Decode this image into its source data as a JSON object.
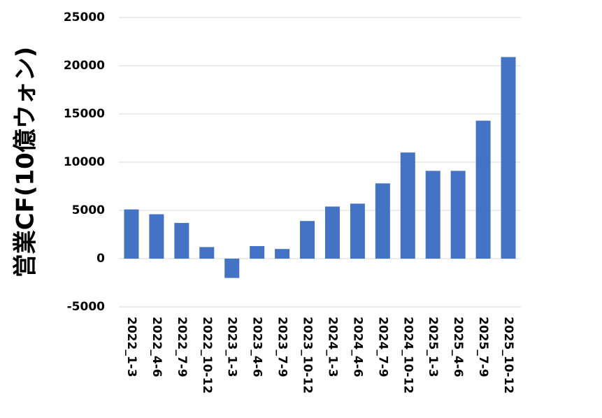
{
  "chart_data": {
    "type": "bar",
    "y_label": "営業CF(10億ウォン)",
    "categories": [
      "2022_1-3",
      "2022_4-6",
      "2022_7-9",
      "2022_10-12",
      "2023_1-3",
      "2023_4-6",
      "2023_7-9",
      "2023_10-12",
      "2024_1-3",
      "2024_4-6",
      "2024_7-9",
      "2024_10-12",
      "2025_1-3",
      "2025_4-6",
      "2025_7-9",
      "2025_10-12"
    ],
    "values": [
      5100,
      4600,
      3700,
      1200,
      -2000,
      1300,
      1000,
      3900,
      5400,
      5700,
      7800,
      11000,
      9100,
      9100,
      14300,
      20900
    ],
    "color": "#4472c4",
    "ylim": [
      -5000,
      25000
    ],
    "yticks": [
      -5000,
      0,
      5000,
      10000,
      15000,
      20000,
      25000
    ],
    "grid": true
  }
}
